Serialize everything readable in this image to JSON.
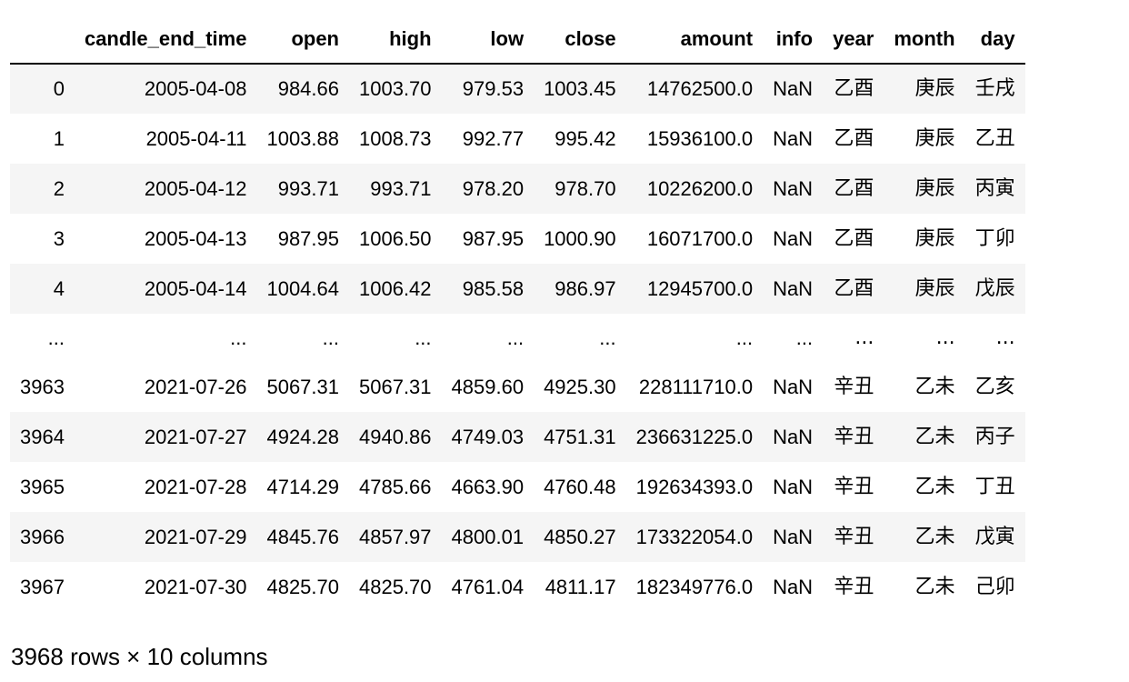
{
  "dataframe": {
    "index_header": "",
    "columns": [
      "candle_end_time",
      "open",
      "high",
      "low",
      "close",
      "amount",
      "info",
      "year",
      "month",
      "day"
    ],
    "head_rows": [
      {
        "index": "0",
        "values": [
          "2005-04-08",
          "984.66",
          "1003.70",
          "979.53",
          "1003.45",
          "14762500.0",
          "NaN",
          "乙酉",
          "庚辰",
          "壬戌"
        ]
      },
      {
        "index": "1",
        "values": [
          "2005-04-11",
          "1003.88",
          "1008.73",
          "992.77",
          "995.42",
          "15936100.0",
          "NaN",
          "乙酉",
          "庚辰",
          "乙丑"
        ]
      },
      {
        "index": "2",
        "values": [
          "2005-04-12",
          "993.71",
          "993.71",
          "978.20",
          "978.70",
          "10226200.0",
          "NaN",
          "乙酉",
          "庚辰",
          "丙寅"
        ]
      },
      {
        "index": "3",
        "values": [
          "2005-04-13",
          "987.95",
          "1006.50",
          "987.95",
          "1000.90",
          "16071700.0",
          "NaN",
          "乙酉",
          "庚辰",
          "丁卯"
        ]
      },
      {
        "index": "4",
        "values": [
          "2005-04-14",
          "1004.64",
          "1006.42",
          "985.58",
          "986.97",
          "12945700.0",
          "NaN",
          "乙酉",
          "庚辰",
          "戊辰"
        ]
      }
    ],
    "ellipsis_row": {
      "index": "...",
      "values": [
        "...",
        "...",
        "...",
        "...",
        "...",
        "...",
        "...",
        "...",
        "...",
        "..."
      ]
    },
    "tail_rows": [
      {
        "index": "3963",
        "values": [
          "2021-07-26",
          "5067.31",
          "5067.31",
          "4859.60",
          "4925.30",
          "228111710.0",
          "NaN",
          "辛丑",
          "乙未",
          "乙亥"
        ]
      },
      {
        "index": "3964",
        "values": [
          "2021-07-27",
          "4924.28",
          "4940.86",
          "4749.03",
          "4751.31",
          "236631225.0",
          "NaN",
          "辛丑",
          "乙未",
          "丙子"
        ]
      },
      {
        "index": "3965",
        "values": [
          "2021-07-28",
          "4714.29",
          "4785.66",
          "4663.90",
          "4760.48",
          "192634393.0",
          "NaN",
          "辛丑",
          "乙未",
          "丁丑"
        ]
      },
      {
        "index": "3966",
        "values": [
          "2021-07-29",
          "4845.76",
          "4857.97",
          "4800.01",
          "4850.27",
          "173322054.0",
          "NaN",
          "辛丑",
          "乙未",
          "戊寅"
        ]
      },
      {
        "index": "3967",
        "values": [
          "2021-07-30",
          "4825.70",
          "4825.70",
          "4761.04",
          "4811.17",
          "182349776.0",
          "NaN",
          "辛丑",
          "乙未",
          "己卯"
        ]
      }
    ],
    "shape_text": "3968 rows × 10 columns"
  },
  "colors": {
    "stripe": "#f5f5f5",
    "text": "#000000",
    "header_rule": "#000000"
  }
}
